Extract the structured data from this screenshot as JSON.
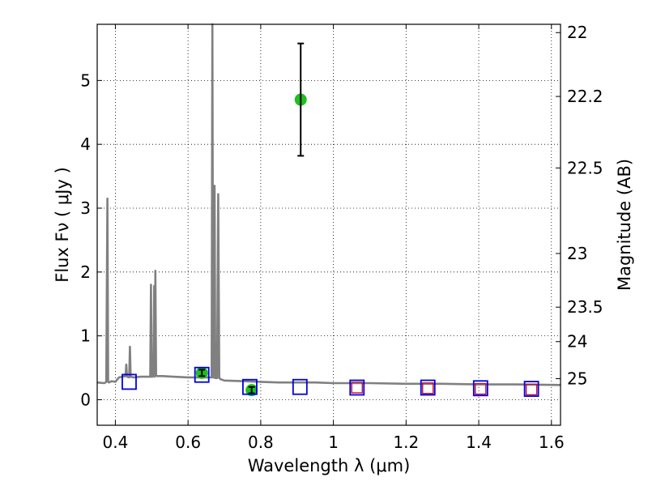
{
  "chart_data": {
    "type": "scatter",
    "xlabel": "Wavelength  λ (μm)",
    "ylabel": "Flux  Fν  ( μJy )",
    "ylabel_right": "Magnitude (AB)",
    "xlim": [
      0.35,
      1.625
    ],
    "ylim": [
      -0.4,
      5.88
    ],
    "grid": true,
    "x_ticks": [
      0.4,
      0.6,
      0.8,
      1.0,
      1.2,
      1.4,
      1.6
    ],
    "x_tick_labels": [
      "0.4",
      "0.6",
      "0.8",
      "1",
      "1.2",
      "1.4",
      "1.6"
    ],
    "y_ticks": [
      0,
      1,
      2,
      3,
      4,
      5
    ],
    "y_tick_labels": [
      "0",
      "1",
      "2",
      "3",
      "4",
      "5"
    ],
    "right_ticks": [
      {
        "flux": 5.75,
        "label": "22"
      },
      {
        "flux": 4.75,
        "label": "22.2"
      },
      {
        "flux": 3.63,
        "label": "22.5"
      },
      {
        "flux": 2.29,
        "label": "23"
      },
      {
        "flux": 1.45,
        "label": "23.5"
      },
      {
        "flux": 0.91,
        "label": "24"
      },
      {
        "flux": 0.33,
        "label": "25"
      }
    ],
    "colors": {
      "model": "#808080",
      "observed": "#1fbf1f",
      "model_photometry": "#0000e0",
      "alt_photometry": "#c8102e",
      "grid": "#000000"
    },
    "series": [
      {
        "kind": "model_spectrum",
        "x": [
          0.35,
          0.37,
          0.375,
          0.378,
          0.38,
          0.382,
          0.39,
          0.4,
          0.41,
          0.42,
          0.428,
          0.43,
          0.432,
          0.438,
          0.44,
          0.442,
          0.45,
          0.47,
          0.49,
          0.496,
          0.498,
          0.5,
          0.502,
          0.505,
          0.507,
          0.508,
          0.509,
          0.51,
          0.512,
          0.514,
          0.53,
          0.56,
          0.6,
          0.65,
          0.665,
          0.667,
          0.669,
          0.671,
          0.673,
          0.675,
          0.68,
          0.683,
          0.686,
          0.688,
          0.69,
          0.7,
          0.75,
          0.8,
          0.85,
          0.9,
          0.95,
          1.0,
          1.1,
          1.2,
          1.3,
          1.4,
          1.5,
          1.625
        ],
        "y": [
          0.27,
          0.26,
          0.28,
          3.15,
          0.28,
          0.27,
          0.29,
          0.28,
          0.35,
          0.36,
          0.37,
          0.55,
          0.36,
          0.35,
          0.83,
          0.36,
          0.35,
          0.36,
          0.36,
          0.36,
          1.8,
          0.36,
          0.36,
          0.38,
          1.78,
          0.36,
          0.38,
          2.02,
          0.38,
          0.37,
          0.37,
          0.36,
          0.35,
          0.35,
          0.35,
          6.0,
          0.35,
          0.35,
          3.35,
          0.34,
          0.34,
          3.22,
          0.34,
          0.33,
          0.32,
          0.3,
          0.29,
          0.28,
          0.27,
          0.27,
          0.27,
          0.26,
          0.26,
          0.25,
          0.25,
          0.24,
          0.24,
          0.23
        ]
      },
      {
        "kind": "observed",
        "points": [
          {
            "x": 0.638,
            "y": 0.42,
            "err": 0.05
          },
          {
            "x": 0.775,
            "y": 0.15,
            "err": 0.05
          },
          {
            "x": 0.91,
            "y": 4.7,
            "err": 0.88
          }
        ]
      },
      {
        "kind": "model_photometry",
        "points": [
          {
            "x": 0.438,
            "y": 0.28
          },
          {
            "x": 0.638,
            "y": 0.39
          },
          {
            "x": 0.77,
            "y": 0.2
          },
          {
            "x": 0.908,
            "y": 0.2
          },
          {
            "x": 1.065,
            "y": 0.19
          },
          {
            "x": 1.26,
            "y": 0.19
          },
          {
            "x": 1.405,
            "y": 0.18
          },
          {
            "x": 1.545,
            "y": 0.17
          }
        ]
      },
      {
        "kind": "alt_photometry",
        "points": [
          {
            "x": 1.065,
            "y": 0.19
          },
          {
            "x": 1.26,
            "y": 0.18
          },
          {
            "x": 1.405,
            "y": 0.17
          },
          {
            "x": 1.545,
            "y": 0.16
          }
        ]
      }
    ]
  }
}
